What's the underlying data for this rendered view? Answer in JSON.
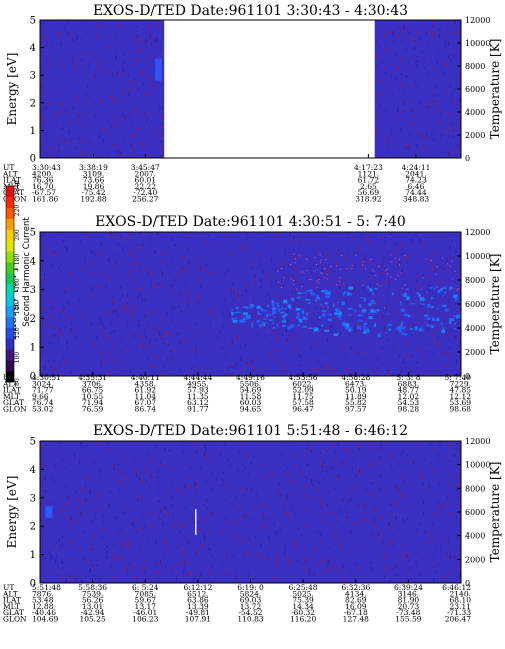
{
  "chart_data": [
    {
      "type": "heatmap",
      "title": "EXOS-D/TED   Date:961101   3:30:43 - 4:30:43",
      "ylabel": "Energy [eV]",
      "y2label": "Temperature [K]",
      "ylim": [
        0,
        5
      ],
      "yticks": [
        "0",
        "1",
        "2",
        "3",
        "4",
        "5"
      ],
      "y2lim": [
        0,
        12000
      ],
      "y2ticks": [
        "0",
        "2000",
        "4000",
        "6000",
        "8000",
        "10000",
        "12000"
      ],
      "data_gaps": [
        [
          0.295,
          0.795
        ]
      ],
      "features": [
        {
          "kind": "blob",
          "x": 0.28,
          "y": [
            2.8,
            3.6
          ],
          "color": "#3355ff"
        }
      ],
      "rows": {
        "UT": [
          "3:30:43",
          "3:38:19",
          "3:45:47",
          "4:17:23",
          "4:24:11"
        ],
        "ALT": [
          "4200.",
          "3109.",
          "2007.",
          "1121.",
          "2041."
        ],
        "ILAT": [
          "76.36",
          "73.66",
          "60.01",
          "61.72",
          "74.23"
        ],
        "MLT": [
          "16.70",
          "19.86",
          "22.22",
          "2.65",
          "6.46"
        ],
        "GLAT": [
          "-67.57",
          "-75.42",
          "-72.40",
          "56.69",
          "74.44"
        ],
        "GLON": [
          "161.86",
          "192.88",
          "256.27",
          "318.92",
          "348.83"
        ]
      },
      "row_positions": [
        0.0,
        0.127,
        0.25,
        0.78,
        0.893
      ]
    },
    {
      "type": "heatmap",
      "title": "EXOS-D/TED   Date:961101   4:30:51 - 5: 7:40",
      "ylabel": "Energy [eV]",
      "y2label": "Temperature [K]",
      "ylim": [
        0,
        5
      ],
      "yticks": [
        "0",
        "1",
        "2",
        "3",
        "4",
        "5"
      ],
      "y2lim": [
        0,
        12000
      ],
      "y2ticks": [
        "0",
        "2000",
        "4000",
        "6000",
        "8000",
        "10000",
        "12000"
      ],
      "features": [
        {
          "kind": "band",
          "x": [
            0.45,
            1.0
          ],
          "y": [
            1.3,
            3.0
          ],
          "color": "#1f6fff"
        }
      ],
      "rows": {
        "UT": [
          "4:30:51",
          "4:35:31",
          "4:40:11",
          "4:44:44",
          "4:49:16",
          "4:53:56",
          "4:58:28",
          "5: 3: 8",
          "5: 7:40"
        ],
        "ALT": [
          "3024.",
          "3706.",
          "4358.",
          "4955.",
          "5506.",
          "6022.",
          "6473.",
          "6883.",
          "7229."
        ],
        "ILAT": [
          "71.77",
          "66.75",
          "61.92",
          "57.93",
          "54.69",
          "52.09",
          "50.19",
          "48.77",
          "47.85"
        ],
        "MLT": [
          "9.66",
          "10.55",
          "11.04",
          "11.35",
          "11.58",
          "11.75",
          "11.89",
          "12.02",
          "12.12"
        ],
        "GLAT": [
          "76.74",
          "71.94",
          "67.07",
          "63.12",
          "60.03",
          "57.58",
          "55.82",
          "54.53",
          "53.69"
        ],
        "GLON": [
          "53.02",
          "76.59",
          "86.74",
          "91.77",
          "94.65",
          "96.47",
          "97.57",
          "98.28",
          "98.68"
        ]
      },
      "row_positions": [
        0.0,
        0.125,
        0.25,
        0.375,
        0.5,
        0.625,
        0.75,
        0.875,
        1.0
      ]
    },
    {
      "type": "heatmap",
      "title": "EXOS-D/TED   Date:961101   5:51:48 - 6:46:12",
      "ylabel": "Energy [eV]",
      "y2label": "Temperature [K]",
      "ylim": [
        0,
        5
      ],
      "yticks": [
        "0",
        "1",
        "2",
        "3",
        "4",
        "5"
      ],
      "y2lim": [
        0,
        12000
      ],
      "y2ticks": [
        "0",
        "2000",
        "4000",
        "6000",
        "8000",
        "10000",
        "12000"
      ],
      "features": [
        {
          "kind": "blob",
          "x": 0.02,
          "y": [
            2.3,
            2.7
          ],
          "color": "#2a63ff"
        },
        {
          "kind": "line",
          "x": 0.37,
          "y": [
            1.7,
            2.6
          ],
          "color": "#ffffff"
        }
      ],
      "rows": {
        "UT": [
          "5:51:48",
          "5:58:36",
          "6: 5:24",
          "6:12:12",
          "6:19: 0",
          "6:25:48",
          "6:32:36",
          "6:39:24",
          "6:46:12"
        ],
        "ALT": [
          "7876.",
          "7539.",
          "7085.",
          "6512.",
          "5824.",
          "5025.",
          "4134.",
          "3146.",
          "2140."
        ],
        "ILAT": [
          "53.48",
          "56.26",
          "59.67",
          "63.86",
          "69.03",
          "75.39",
          "82.69",
          "81.90",
          "68.10"
        ],
        "MLT": [
          "12.88",
          "13.01",
          "13.17",
          "13.39",
          "13.72",
          "14.34",
          "16.09",
          "20.73",
          "23.11"
        ],
        "GLAT": [
          "-40.46",
          "-42.94",
          "-46.01",
          "-49.81",
          "-54.52",
          "-60.32",
          "-67.18",
          "-73.48",
          "-71.33"
        ],
        "GLON": [
          "104.69",
          "105.25",
          "106.23",
          "107.91",
          "110.83",
          "116.20",
          "127.48",
          "155.59",
          "206.47"
        ]
      },
      "row_positions": [
        0.0,
        0.125,
        0.25,
        0.375,
        0.5,
        0.625,
        0.75,
        0.875,
        1.0
      ]
    }
  ],
  "colorbar": {
    "title": "Second Harmonic Current",
    "ticks": [
      "80",
      "100",
      "120",
      "140",
      "160",
      "180",
      "200",
      "220",
      "240"
    ],
    "range": [
      80,
      240
    ],
    "colors": [
      "#000000",
      "#2b0a4f",
      "#3e1686",
      "#2a2fc8",
      "#1f4ff0",
      "#1a76ff",
      "#15a0ff",
      "#00c8e6",
      "#00d8a8",
      "#13c860",
      "#40d020",
      "#90e000",
      "#d8e800",
      "#ffd000",
      "#ff9a00",
      "#ff5a00",
      "#ff2a00",
      "#e01010"
    ]
  },
  "row_labels": [
    "UT",
    "ALT",
    "ILAT",
    "MLT",
    "GLAT",
    "GLON"
  ],
  "colors": {
    "background": "#3a2fc0",
    "background_dark": "#2b1f9a",
    "streak": "#a0183a"
  }
}
